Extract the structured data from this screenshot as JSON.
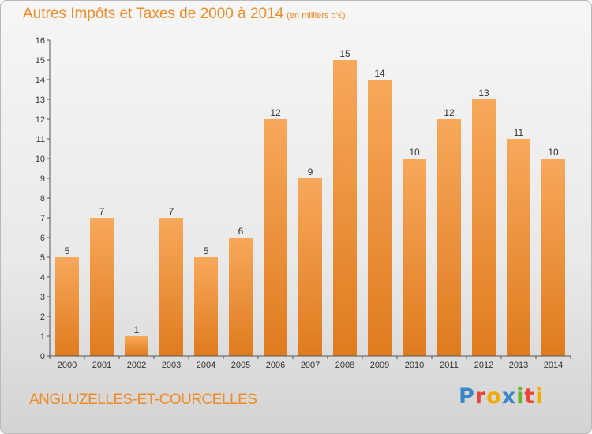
{
  "title": "Autres Impôts et Taxes de 2000 à 2014",
  "subtitle": "(en milliers d'€)",
  "commune": "ANGLUZELLES-ET-COURCELLES",
  "logo": {
    "text": "Proxiti",
    "letters": [
      {
        "char": "P",
        "color": "#3a86c8"
      },
      {
        "char": "r",
        "color": "#e8453c"
      },
      {
        "char": "o",
        "color": "#f2a900"
      },
      {
        "char": "x",
        "color": "#3a86c8"
      },
      {
        "char": "i",
        "color": "#6ab42d"
      },
      {
        "char": "t",
        "color": "#e8453c"
      },
      {
        "char": "i",
        "color": "#f2a900"
      }
    ]
  },
  "chart_data": {
    "type": "bar",
    "categories": [
      "2000",
      "2001",
      "2002",
      "2003",
      "2004",
      "2005",
      "2006",
      "2007",
      "2008",
      "2009",
      "2010",
      "2011",
      "2012",
      "2013",
      "2014"
    ],
    "values": [
      5,
      7,
      1,
      7,
      5,
      6,
      12,
      9,
      15,
      14,
      10,
      12,
      13,
      11,
      10
    ],
    "ylim": [
      0,
      16
    ],
    "yticks": [
      0,
      1,
      2,
      3,
      4,
      5,
      6,
      7,
      8,
      9,
      10,
      11,
      12,
      13,
      14,
      15,
      16
    ],
    "grid": false,
    "colors": {
      "bar_light": "#f7a85a",
      "bar_dark": "#e07b1f",
      "axis": "#555555",
      "text": "#333333"
    }
  }
}
